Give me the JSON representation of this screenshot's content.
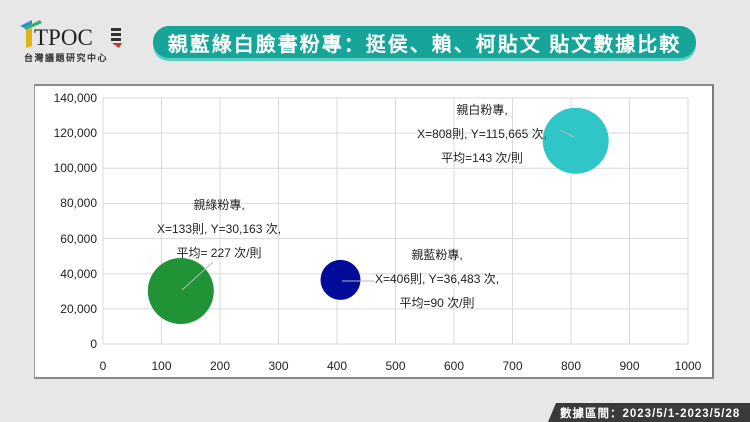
{
  "logo": {
    "text": "TPOC",
    "subtitle": "台灣議題研究中心"
  },
  "title": "親藍綠白臉書粉專：挺侯、賴、柯貼文  貼文數據比較",
  "footer": {
    "date_range": "數據區間：2023/5/1-2023/5/28"
  },
  "colors": {
    "banner": "#17a59a",
    "green_bubble": "#1f9335",
    "blue_bubble": "#000c99",
    "white_bubble": "#2ec6c6",
    "grid": "#d9d9d9"
  },
  "chart_data": {
    "type": "scatter",
    "subtype": "bubble",
    "title": "親藍綠白臉書粉專：挺侯、賴、柯貼文  貼文數據比較",
    "xlabel": "",
    "ylabel": "",
    "xlim": [
      0,
      1000
    ],
    "ylim": [
      0,
      140000
    ],
    "x_ticks": [
      "0",
      "100",
      "200",
      "300",
      "400",
      "500",
      "600",
      "700",
      "800",
      "900",
      "1000"
    ],
    "y_ticks": [
      "0",
      "20,000",
      "40,000",
      "60,000",
      "80,000",
      "100,000",
      "120,000",
      "140,000"
    ],
    "grid": true,
    "legend": "none",
    "series": [
      {
        "name": "親綠粉專",
        "x": 133,
        "y": 30163,
        "avg": 227,
        "color": "#1f9335",
        "label_lines": [
          "親綠粉專,",
          "X=133則, Y=30,163 次,",
          "平均= 227 次/則"
        ]
      },
      {
        "name": "親藍粉專",
        "x": 406,
        "y": 36483,
        "avg": 90,
        "color": "#000c99",
        "label_lines": [
          "親藍粉專,",
          "X=406則, Y=36,483 次,",
          "平均=90 次/則"
        ]
      },
      {
        "name": "親白粉專",
        "x": 808,
        "y": 115665,
        "avg": 143,
        "color": "#2ec6c6",
        "label_lines": [
          "親白粉專,",
          "X=808則, Y=115,665 次,",
          "平均=143 次/則"
        ]
      }
    ]
  }
}
